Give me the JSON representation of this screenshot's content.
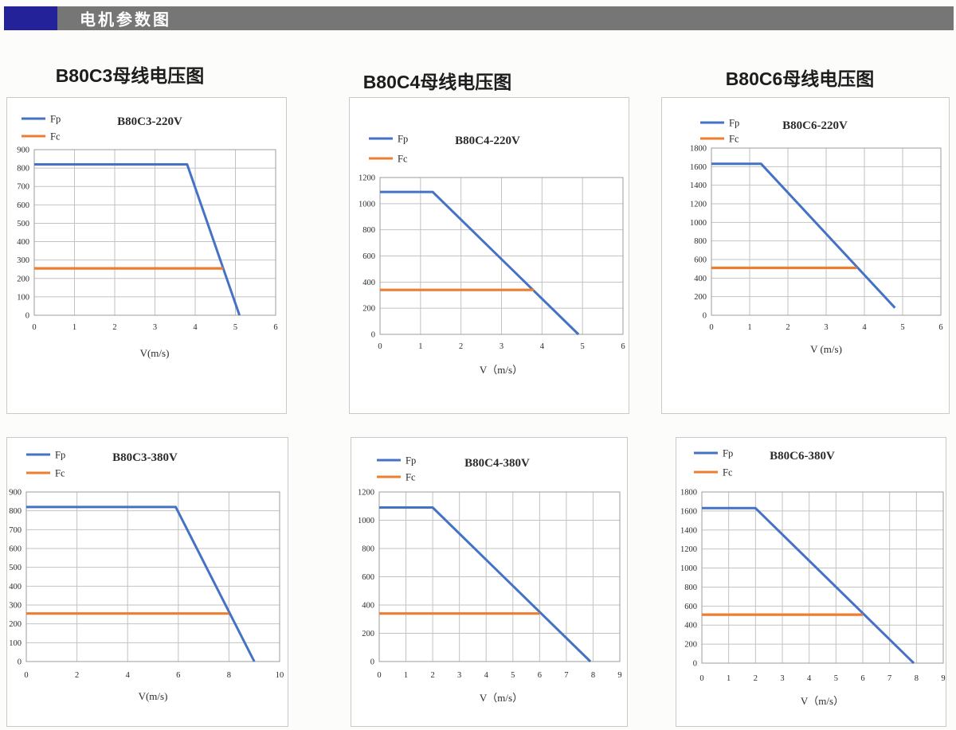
{
  "header": {
    "title": "电机参数图",
    "accent_color": "#232299",
    "bar_color": "#767676",
    "text_color": "#ffffff"
  },
  "column_titles": [
    {
      "label": "B80C3母线电压图"
    },
    {
      "label": "B80C4母线电压图"
    },
    {
      "label": "B80C6母线电压图"
    }
  ],
  "colors": {
    "fp_line": "#4472c4",
    "fc_line": "#ed7d31",
    "gridline": "#c2c2c2",
    "plot_border": "#9e9e9e",
    "tick_text": "#3a3a3a"
  },
  "chart_data": [
    {
      "type": "line",
      "title": "B80C3-220V",
      "xlabel": "V(m/s)",
      "ylabel": "",
      "xlim": [
        0,
        6
      ],
      "xticks": [
        0,
        1,
        2,
        3,
        4,
        5,
        6
      ],
      "ylim": [
        0,
        900
      ],
      "yticks": [
        0,
        100,
        200,
        300,
        400,
        500,
        600,
        700,
        800,
        900
      ],
      "grid": true,
      "legend_position": "top-left",
      "series": [
        {
          "name": "Fp",
          "color": "#4472c4",
          "points": [
            [
              0,
              820
            ],
            [
              3.8,
              820
            ],
            [
              5.1,
              0
            ]
          ]
        },
        {
          "name": "Fc",
          "color": "#ed7d31",
          "points": [
            [
              0,
              255
            ],
            [
              4.7,
              255
            ]
          ]
        }
      ]
    },
    {
      "type": "line",
      "title": "B80C4-220V",
      "xlabel": "V（m/s）",
      "ylabel": "",
      "xlim": [
        0,
        6
      ],
      "xticks": [
        0,
        1,
        2,
        3,
        4,
        5,
        6
      ],
      "ylim": [
        0,
        1200
      ],
      "yticks": [
        0,
        200,
        400,
        600,
        800,
        1000,
        1200
      ],
      "grid": true,
      "legend_position": "top-left",
      "series": [
        {
          "name": "Fp",
          "color": "#4472c4",
          "points": [
            [
              0,
              1090
            ],
            [
              1.3,
              1090
            ],
            [
              4.9,
              0
            ]
          ]
        },
        {
          "name": "Fc",
          "color": "#ed7d31",
          "points": [
            [
              0,
              340
            ],
            [
              3.8,
              340
            ]
          ]
        }
      ]
    },
    {
      "type": "line",
      "title": "B80C6-220V",
      "xlabel": "V (m/s)",
      "ylabel": "",
      "xlim": [
        0,
        6
      ],
      "xticks": [
        0,
        1,
        2,
        3,
        4,
        5,
        6
      ],
      "ylim": [
        0,
        1800
      ],
      "yticks": [
        0,
        200,
        400,
        600,
        800,
        1000,
        1200,
        1400,
        1600,
        1800
      ],
      "grid": true,
      "legend_position": "top-left",
      "series": [
        {
          "name": "Fp",
          "color": "#4472c4",
          "points": [
            [
              0,
              1630
            ],
            [
              1.3,
              1630
            ],
            [
              4.8,
              80
            ]
          ]
        },
        {
          "name": "Fc",
          "color": "#ed7d31",
          "points": [
            [
              0,
              510
            ],
            [
              3.8,
              510
            ]
          ]
        }
      ]
    },
    {
      "type": "line",
      "title": "B80C3-380V",
      "xlabel": "V(m/s)",
      "ylabel": "",
      "xlim": [
        0,
        10
      ],
      "xticks": [
        0,
        2,
        4,
        6,
        8,
        10
      ],
      "ylim": [
        0,
        900
      ],
      "yticks": [
        0,
        100,
        200,
        300,
        400,
        500,
        600,
        700,
        800,
        900
      ],
      "grid": true,
      "legend_position": "top-left",
      "series": [
        {
          "name": "Fp",
          "color": "#4472c4",
          "points": [
            [
              0,
              820
            ],
            [
              5.9,
              820
            ],
            [
              9,
              0
            ]
          ]
        },
        {
          "name": "Fc",
          "color": "#ed7d31",
          "points": [
            [
              0,
              255
            ],
            [
              8,
              255
            ]
          ]
        }
      ]
    },
    {
      "type": "line",
      "title": "B80C4-380V",
      "xlabel": "V（m/s）",
      "ylabel": "",
      "xlim": [
        0,
        9
      ],
      "xticks": [
        0,
        1,
        2,
        3,
        4,
        5,
        6,
        7,
        8,
        9
      ],
      "ylim": [
        0,
        1200
      ],
      "yticks": [
        0,
        200,
        400,
        600,
        800,
        1000,
        1200
      ],
      "grid": true,
      "legend_position": "top-left",
      "series": [
        {
          "name": "Fp",
          "color": "#4472c4",
          "points": [
            [
              0,
              1090
            ],
            [
              2,
              1090
            ],
            [
              7.9,
              0
            ]
          ]
        },
        {
          "name": "Fc",
          "color": "#ed7d31",
          "points": [
            [
              0,
              340
            ],
            [
              6,
              340
            ]
          ]
        }
      ]
    },
    {
      "type": "line",
      "title": "B80C6-380V",
      "xlabel": "V（m/s）",
      "ylabel": "",
      "xlim": [
        0,
        9
      ],
      "xticks": [
        0,
        1,
        2,
        3,
        4,
        5,
        6,
        7,
        8,
        9
      ],
      "ylim": [
        0,
        1800
      ],
      "yticks": [
        0,
        200,
        400,
        600,
        800,
        1000,
        1200,
        1400,
        1600,
        1800
      ],
      "grid": true,
      "legend_position": "top-left",
      "series": [
        {
          "name": "Fp",
          "color": "#4472c4",
          "points": [
            [
              0,
              1630
            ],
            [
              2,
              1630
            ],
            [
              7.9,
              0
            ]
          ]
        },
        {
          "name": "Fc",
          "color": "#ed7d31",
          "points": [
            [
              0,
              510
            ],
            [
              6,
              510
            ]
          ]
        }
      ]
    }
  ]
}
